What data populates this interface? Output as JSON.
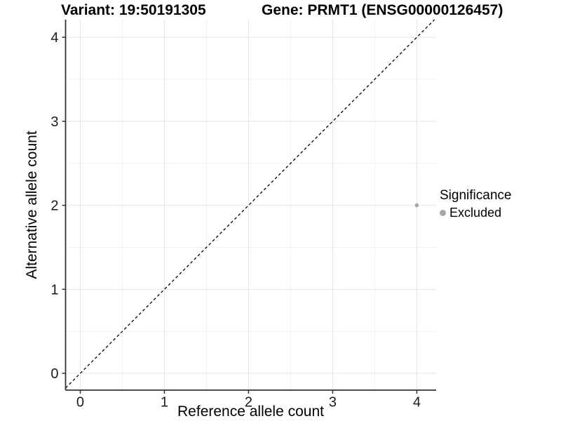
{
  "header": {
    "variant_label": "Variant: 19:50191305",
    "gene_label": "Gene: PRMT1 (ENSG00000126457)"
  },
  "colors": {
    "point": "#a6a6a6",
    "legend_key": "#a6a6a6",
    "grid_major": "#e4e4e4",
    "grid_minor": "#f0f0f0",
    "axis_line": "#333333",
    "tick_label": "#1a1a1a",
    "identity_line": "#000000"
  },
  "chart_data": {
    "type": "scatter",
    "title": "",
    "xlabel": "Reference allele count",
    "ylabel": "Alternative allele count",
    "xlim": [
      -0.175,
      4.23
    ],
    "ylim": [
      -0.2,
      4.21
    ],
    "xticks": [
      0,
      1,
      2,
      3,
      4
    ],
    "yticks": [
      0,
      1,
      2,
      3,
      4
    ],
    "xtick_labels": [
      "0",
      "1",
      "2",
      "3",
      "4"
    ],
    "ytick_labels": [
      "0",
      "1",
      "2",
      "3",
      "4"
    ],
    "minor_ticks": [
      0.5,
      1.5,
      2.5,
      3.5
    ],
    "grid": "major+minor",
    "identity_line": {
      "style": "dashed",
      "from": [
        -0.175,
        -0.175
      ],
      "to": [
        4.209,
        4.209
      ]
    },
    "series": [
      {
        "name": "Excluded",
        "points": [
          {
            "x": 4,
            "y": 2
          }
        ]
      }
    ],
    "legend": {
      "title": "Significance",
      "position": "right",
      "entries": [
        "Excluded"
      ]
    }
  }
}
